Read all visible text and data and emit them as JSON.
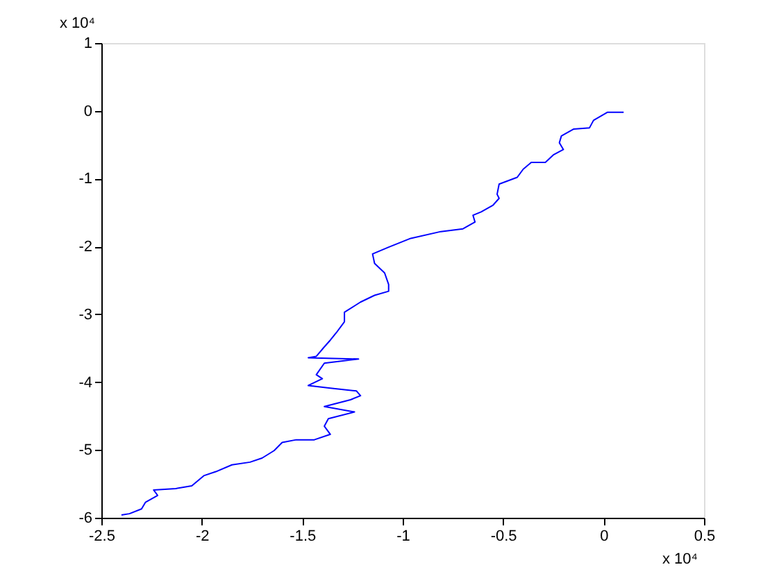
{
  "chart_data": {
    "type": "line",
    "series": [
      {
        "color": "#0000ff",
        "x": [
          0.1,
          0.02,
          -0.05,
          -0.07,
          -0.15,
          -0.21,
          -0.22,
          -0.2,
          -0.25,
          -0.29,
          -0.36,
          -0.4,
          -0.43,
          -0.52,
          -0.53,
          -0.52,
          -0.55,
          -0.61,
          -0.65,
          -0.64,
          -0.7,
          -0.81,
          -0.96,
          -1.07,
          -1.15,
          -1.14,
          -1.09,
          -1.07,
          -1.07,
          -1.14,
          -1.21,
          -1.29,
          -1.29,
          -1.33,
          -1.36,
          -1.39,
          -1.43,
          -1.47,
          -1.22,
          -1.39,
          -1.43,
          -1.4,
          -1.47,
          -1.36,
          -1.23,
          -1.21,
          -1.26,
          -1.39,
          -1.24,
          -1.37,
          -1.39,
          -1.36,
          -1.44,
          -1.53,
          -1.6,
          -1.64,
          -1.7,
          -1.76,
          -1.85,
          -1.93,
          -1.99,
          -2.05,
          -2.13,
          -2.24,
          -2.22,
          -2.28,
          -2.3,
          -2.36,
          -2.4
        ],
        "values": [
          -0.02,
          -0.02,
          -0.14,
          -0.25,
          -0.27,
          -0.37,
          -0.47,
          -0.57,
          -0.65,
          -0.76,
          -0.76,
          -0.86,
          -0.98,
          -1.08,
          -1.23,
          -1.29,
          -1.39,
          -1.49,
          -1.54,
          -1.64,
          -1.74,
          -1.78,
          -1.88,
          -2.01,
          -2.11,
          -2.25,
          -2.39,
          -2.56,
          -2.66,
          -2.72,
          -2.82,
          -2.97,
          -3.11,
          -3.27,
          -3.38,
          -3.48,
          -3.62,
          -3.64,
          -3.66,
          -3.72,
          -3.89,
          -3.95,
          -4.05,
          -4.09,
          -4.13,
          -4.2,
          -4.26,
          -4.36,
          -4.44,
          -4.54,
          -4.65,
          -4.77,
          -4.85,
          -4.85,
          -4.89,
          -5.01,
          -5.12,
          -5.18,
          -5.22,
          -5.32,
          -5.38,
          -5.53,
          -5.57,
          -5.59,
          -5.67,
          -5.77,
          -5.87,
          -5.94,
          -5.96
        ]
      }
    ],
    "xlim": [
      -2.5,
      0.5
    ],
    "xticks": [
      -2.5,
      -2,
      -1.5,
      -1,
      -0.5,
      0,
      0.5
    ],
    "ylim": [
      -6,
      1
    ],
    "yticks": [
      -6,
      -5,
      -4,
      -3,
      -2,
      -1,
      0,
      1
    ],
    "annotations": [
      "x 10⁴",
      "x 10⁴"
    ],
    "grid": false,
    "legend": false,
    "marker": "none",
    "line_style": "solid"
  }
}
